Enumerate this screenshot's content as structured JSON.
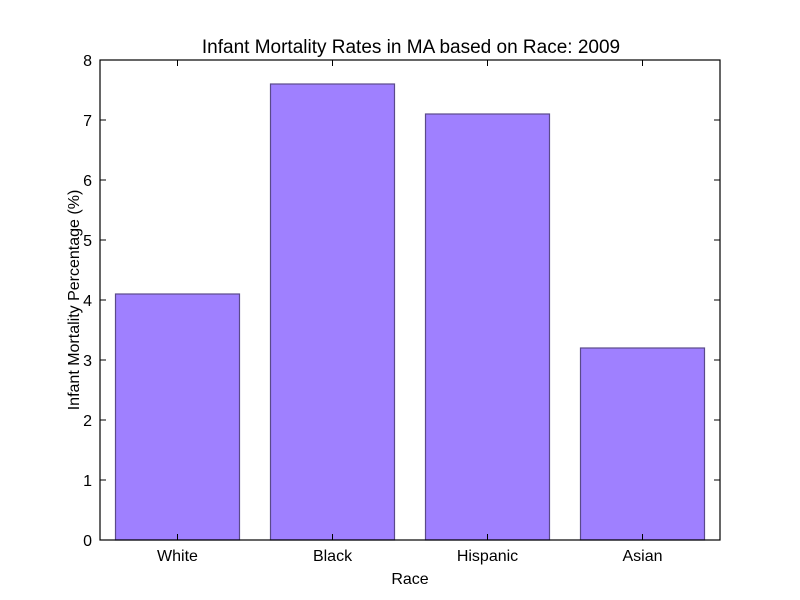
{
  "chart_data": {
    "type": "bar",
    "title": "Infant Mortality Rates in MA based on Race: 2009",
    "xlabel": "Race",
    "ylabel": "Infant Mortality Percentage (%)",
    "categories": [
      "White",
      "Black",
      "Hispanic",
      "Asian"
    ],
    "values": [
      4.1,
      7.6,
      7.1,
      3.2
    ],
    "ylim": [
      0,
      8
    ],
    "yticks": [
      "0",
      "1",
      "2",
      "3",
      "4",
      "5",
      "6",
      "7",
      "8"
    ],
    "grid": false,
    "colors": {
      "bar_fill": "#9f80ff",
      "bar_stroke": "#5a4a8a",
      "axis": "#000000"
    }
  }
}
